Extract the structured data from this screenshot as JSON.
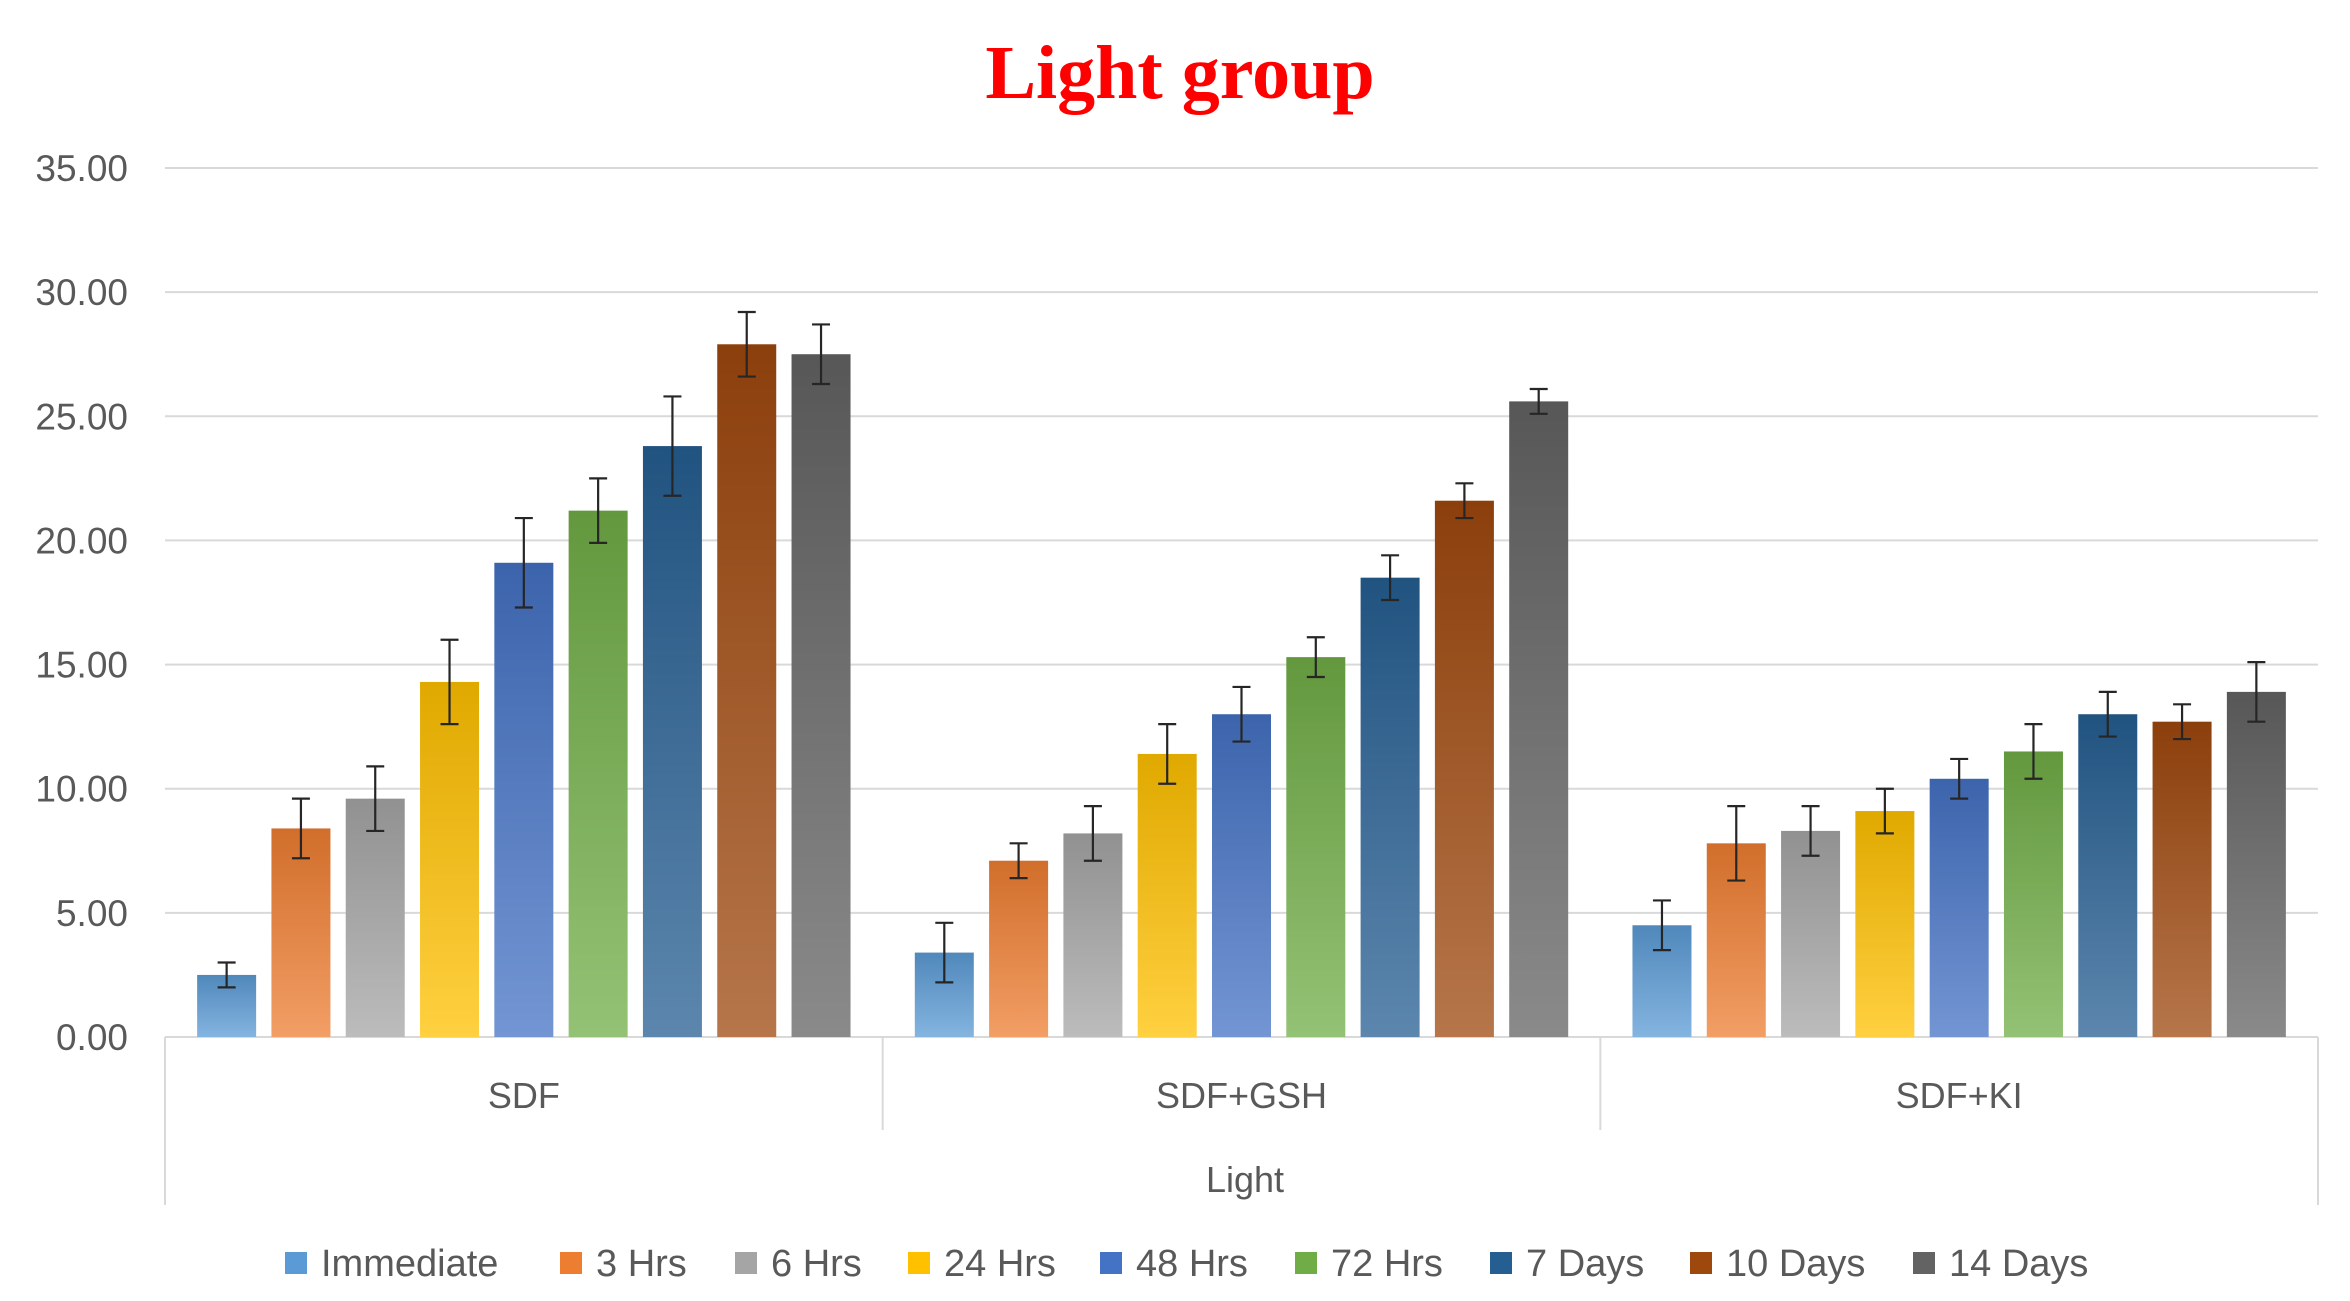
{
  "chart_data": {
    "type": "bar",
    "title": "Light group",
    "xlabel": "Light",
    "ylabel": "",
    "ylim": [
      0,
      35
    ],
    "yticks": [
      "0.00",
      "5.00",
      "10.00",
      "15.00",
      "20.00",
      "25.00",
      "30.00",
      "35.00"
    ],
    "categories": [
      "SDF",
      "SDF+GSH",
      "SDF+KI"
    ],
    "grid": true,
    "legend_position": "bottom",
    "series": [
      {
        "name": "Immediate",
        "color": "#5b9bd5",
        "values": [
          2.5,
          3.4,
          4.5
        ],
        "errors": [
          0.5,
          1.2,
          1.0
        ]
      },
      {
        "name": "3 Hrs",
        "color": "#ed7d31",
        "values": [
          8.4,
          7.1,
          7.8
        ],
        "errors": [
          1.2,
          0.7,
          1.5
        ]
      },
      {
        "name": "6 Hrs",
        "color": "#a5a5a5",
        "values": [
          9.6,
          8.2,
          8.3
        ],
        "errors": [
          1.3,
          1.1,
          1.0
        ]
      },
      {
        "name": "24 Hrs",
        "color": "#ffc000",
        "values": [
          14.3,
          11.4,
          9.1
        ],
        "errors": [
          1.7,
          1.2,
          0.9
        ]
      },
      {
        "name": "48 Hrs",
        "color": "#4472c4",
        "values": [
          19.1,
          13.0,
          10.4
        ],
        "errors": [
          1.8,
          1.1,
          0.8
        ]
      },
      {
        "name": "72 Hrs",
        "color": "#70ad47",
        "values": [
          21.2,
          15.3,
          11.5
        ],
        "errors": [
          1.3,
          0.8,
          1.1
        ]
      },
      {
        "name": "7 Days",
        "color": "#255e91",
        "values": [
          23.8,
          18.5,
          13.0
        ],
        "errors": [
          2.0,
          0.9,
          0.9
        ]
      },
      {
        "name": "10 Days",
        "color": "#9e480e",
        "values": [
          27.9,
          21.6,
          12.7
        ],
        "errors": [
          1.3,
          0.7,
          0.7
        ]
      },
      {
        "name": "14 Days",
        "color": "#636363",
        "values": [
          27.5,
          25.6,
          13.9
        ],
        "errors": [
          1.2,
          0.5,
          1.2
        ]
      }
    ]
  }
}
